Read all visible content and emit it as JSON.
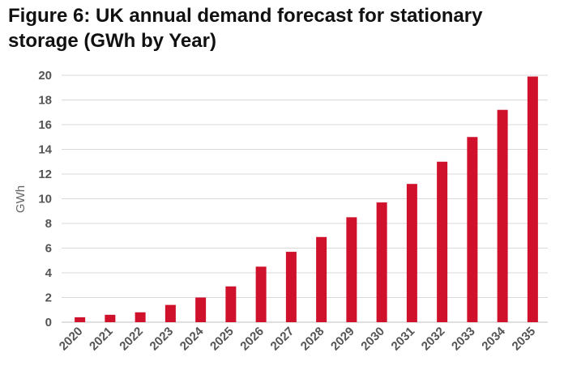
{
  "chart_data": {
    "type": "bar",
    "title": "Figure 6: UK annual demand forecast for stationary storage (GWh by Year)",
    "xlabel": "",
    "ylabel": "GWh",
    "categories": [
      "2020",
      "2021",
      "2022",
      "2023",
      "2024",
      "2025",
      "2026",
      "2027",
      "2028",
      "2029",
      "2030",
      "2031",
      "2032",
      "2033",
      "2034",
      "2035"
    ],
    "values": [
      0.4,
      0.6,
      0.8,
      1.4,
      2.0,
      2.9,
      4.5,
      5.7,
      6.9,
      8.5,
      9.7,
      11.2,
      13.0,
      15.0,
      17.2,
      19.9
    ],
    "ylim": [
      0,
      20
    ],
    "yticks": [
      "0",
      "2",
      "4",
      "6",
      "8",
      "10",
      "12",
      "14",
      "16",
      "18",
      "20"
    ],
    "grid": true,
    "bar_color": "#d0112b"
  }
}
